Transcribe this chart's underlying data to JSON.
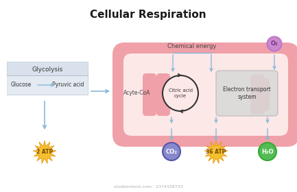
{
  "title": "Cellular Respiration",
  "title_fontsize": 11,
  "title_fontweight": "bold",
  "bg_color": "#ffffff",
  "mito_outer_color": "#f0a0a8",
  "mito_inner_color": "#fde8e8",
  "mito_cristae_color": "#f0a0a8",
  "glycolysis_box_color": "#b8c8d8",
  "electron_box_color": "#cccccc",
  "arrow_color": "#88b8d8",
  "o2_circle_color": "#cc88cc",
  "o2_border_color": "#9966bb",
  "co2_circle_color": "#8888cc",
  "co2_border_color": "#5555aa",
  "h2o_circle_color": "#55bb55",
  "h2o_border_color": "#33993333",
  "atp_color": "#f5c030",
  "atp_spike_color": "#e09000",
  "watermark": "shutterstock.com · 2374158733",
  "chemical_energy_text": "Chemical energy",
  "o2_text": "O₂",
  "co2_text": "CO₂",
  "h2o_text": "H₂O",
  "glycolysis_label": "Glycolysis",
  "glucose_text": "Glucose",
  "pyruvic_text": "Pyruvic acid",
  "acetyl_text": "Acyte-CoA",
  "citric_text": "Citric acid\ncycle",
  "electron_text": "Electron transport\nsystem",
  "atp2_text": "2 ATP",
  "atp36_text": "36 ATP"
}
